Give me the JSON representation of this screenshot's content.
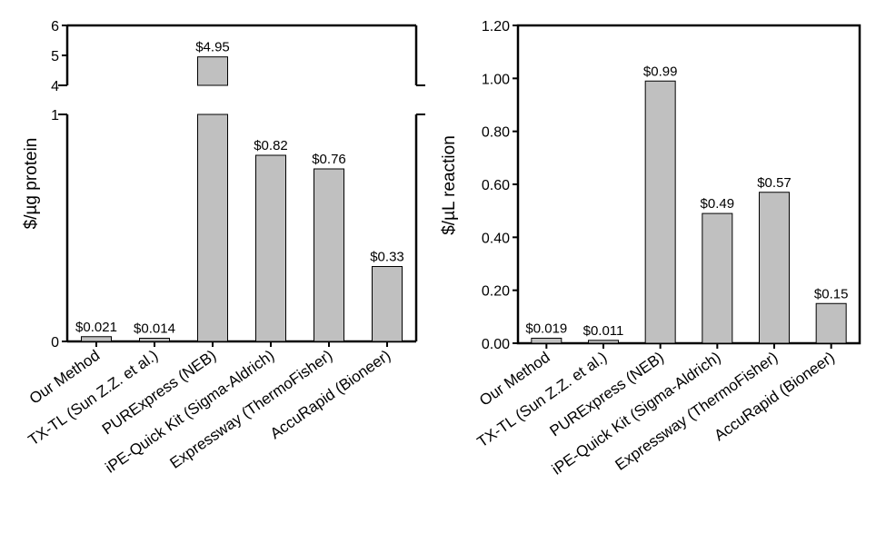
{
  "chart_data": [
    {
      "type": "bar",
      "ylabel": "$/µg protein",
      "categories": [
        "Our Method",
        "TX-TL (Sun Z.Z. et al.)",
        "PURExpress (NEB)",
        "iPE-Quick Kit (Sigma-Aldrich)",
        "Expressway (ThermoFisher)",
        "AccuRapid (Bioneer)"
      ],
      "values": [
        0.021,
        0.014,
        4.95,
        0.82,
        0.76,
        0.33
      ],
      "data_labels": [
        "$0.021",
        "$0.014",
        "$4.95",
        "$0.82",
        "$0.76",
        "$0.33"
      ],
      "broken_axis": {
        "lower_range": [
          0,
          1
        ],
        "upper_range": [
          4,
          6
        ],
        "lower_ticks": [
          "0",
          "1"
        ],
        "upper_ticks": [
          "4",
          "5",
          "6"
        ]
      }
    },
    {
      "type": "bar",
      "ylabel": "$/µL reaction",
      "categories": [
        "Our Method",
        "TX-TL (Sun Z.Z. et al.)",
        "PURExpress (NEB)",
        "iPE-Quick Kit (Sigma-Aldrich)",
        "Expressway (ThermoFisher)",
        "AccuRapid (Bioneer)"
      ],
      "values": [
        0.019,
        0.011,
        0.99,
        0.49,
        0.57,
        0.15
      ],
      "data_labels": [
        "$0.019",
        "$0.011",
        "$0.99",
        "$0.49",
        "$0.57",
        "$0.15"
      ],
      "ylim": [
        0,
        1.2
      ],
      "yticks": [
        "0.00",
        "0.20",
        "0.40",
        "0.60",
        "0.80",
        "1.00",
        "1.20"
      ]
    }
  ]
}
